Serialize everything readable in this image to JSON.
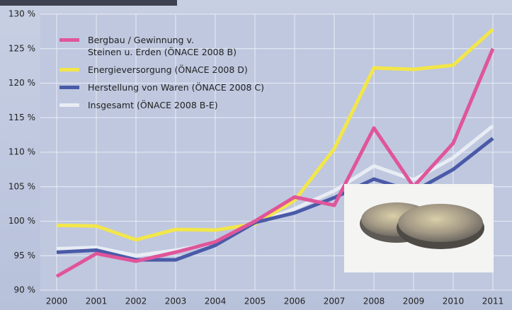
{
  "chart_data": {
    "type": "line",
    "categories": [
      "2000",
      "2001",
      "2002",
      "2003",
      "2004",
      "2005",
      "2006",
      "2007",
      "2008",
      "2009",
      "2010",
      "2011"
    ],
    "series": [
      {
        "name": "Bergbau / Gewinnung v.\nSteinen u. Erden (ÖNACE 2008 B)",
        "color": "#e0559a",
        "values": [
          92,
          95.3,
          94.2,
          95.5,
          97,
          100,
          103.5,
          102.3,
          113.5,
          105,
          111.3,
          125
        ]
      },
      {
        "name": "Energieversorgung (ÖNACE 2008 D)",
        "color": "#f2e64a",
        "values": [
          99.4,
          99.3,
          97.3,
          98.8,
          98.7,
          99.6,
          103,
          110.5,
          122.2,
          122,
          122.6,
          127.8
        ]
      },
      {
        "name": "Herstellung von Waren (ÖNACE 2008 C)",
        "color": "#4a5aa8",
        "values": [
          95.5,
          95.8,
          94.4,
          94.4,
          96.5,
          99.8,
          101.2,
          103.4,
          106.1,
          104.3,
          107.5,
          112
        ]
      },
      {
        "name": "Insgesamt (ÖNACE 2008 B-E)",
        "color": "#e8ecf4",
        "values": [
          96,
          96.2,
          95,
          95.8,
          96.8,
          99.7,
          101.8,
          104.4,
          108,
          106,
          109.2,
          113.8
        ]
      }
    ],
    "ylim": [
      90,
      130
    ],
    "yticks": [
      {
        "value": 90,
        "label": "90 %"
      },
      {
        "value": 95,
        "label": "95 %"
      },
      {
        "value": 100,
        "label": "100 %"
      },
      {
        "value": 105,
        "label": "105 %"
      },
      {
        "value": 110,
        "label": "110 %"
      },
      {
        "value": 115,
        "label": "115 %"
      },
      {
        "value": 120,
        "label": "120 %"
      },
      {
        "value": 125,
        "label": "125 %"
      },
      {
        "value": 130,
        "label": "130 %"
      }
    ],
    "grid": true
  }
}
